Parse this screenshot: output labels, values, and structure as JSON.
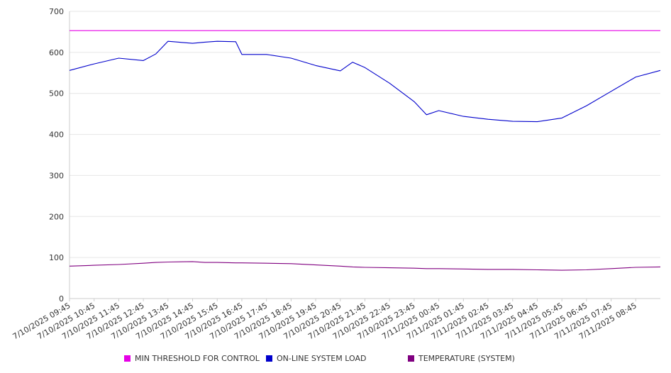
{
  "chart_data": {
    "type": "line",
    "title": "",
    "xlabel": "",
    "ylabel": "",
    "ylim": [
      0,
      700
    ],
    "yticks": [
      0,
      100,
      200,
      300,
      400,
      500,
      600,
      700
    ],
    "grid": true,
    "legend_position": "bottom",
    "x_tick_labels": [
      "7/10/2025 09:45",
      "7/10/2025 10:45",
      "7/10/2025 11:45",
      "7/10/2025 12:45",
      "7/10/2025 13:45",
      "7/10/2025 14:45",
      "7/10/2025 15:45",
      "7/10/2025 16:45",
      "7/10/2025 17:45",
      "7/10/2025 18:45",
      "7/10/2025 19:45",
      "7/10/2025 20:45",
      "7/10/2025 21:45",
      "7/10/2025 22:45",
      "7/10/2025 23:45",
      "7/11/2025 00:45",
      "7/11/2025 01:45",
      "7/11/2025 02:45",
      "7/11/2025 03:45",
      "7/11/2025 04:45",
      "7/11/2025 05:45",
      "7/11/2025 06:45",
      "7/11/2025 07:45",
      "7/11/2025 08:45"
    ],
    "x": [
      "7/10/2025 09:45",
      "7/10/2025 10:45",
      "7/10/2025 11:45",
      "7/10/2025 12:45",
      "7/10/2025 13:15",
      "7/10/2025 13:45",
      "7/10/2025 14:45",
      "7/10/2025 15:15",
      "7/10/2025 15:45",
      "7/10/2025 16:30",
      "7/10/2025 16:45",
      "7/10/2025 17:45",
      "7/10/2025 18:45",
      "7/10/2025 19:45",
      "7/10/2025 20:45",
      "7/10/2025 21:15",
      "7/10/2025 21:45",
      "7/10/2025 22:45",
      "7/10/2025 23:45",
      "7/11/2025 00:15",
      "7/11/2025 00:45",
      "7/11/2025 01:45",
      "7/11/2025 02:45",
      "7/11/2025 03:45",
      "7/11/2025 04:45",
      "7/11/2025 05:45",
      "7/11/2025 06:45",
      "7/11/2025 07:45",
      "7/11/2025 08:45",
      "7/11/2025 09:45"
    ],
    "series": [
      {
        "name": "MIN THRESHOLD FOR CONTROL",
        "color": "#e600e6",
        "values": [
          653,
          653,
          653,
          653,
          653,
          653,
          653,
          653,
          653,
          653,
          653,
          653,
          653,
          653,
          653,
          653,
          653,
          653,
          653,
          653,
          653,
          653,
          653,
          653,
          653,
          653,
          653,
          653,
          653,
          653
        ]
      },
      {
        "name": "ON-LINE SYSTEM LOAD",
        "color": "#0000cc",
        "values": [
          556,
          572,
          586,
          580,
          596,
          627,
          622,
          625,
          627,
          626,
          595,
          595,
          586,
          568,
          555,
          576,
          563,
          525,
          480,
          448,
          458,
          444,
          437,
          432,
          431,
          440,
          470,
          505,
          540,
          556
        ]
      },
      {
        "name": "TEMPERATURE (SYSTEM)",
        "color": "#800080",
        "values": [
          79,
          81,
          83,
          86,
          88,
          89,
          90,
          88,
          88,
          87,
          87,
          86,
          85,
          82,
          79,
          77,
          76,
          75,
          74,
          73,
          73,
          72,
          71,
          71,
          70,
          69,
          70,
          73,
          76,
          77
        ]
      }
    ]
  }
}
